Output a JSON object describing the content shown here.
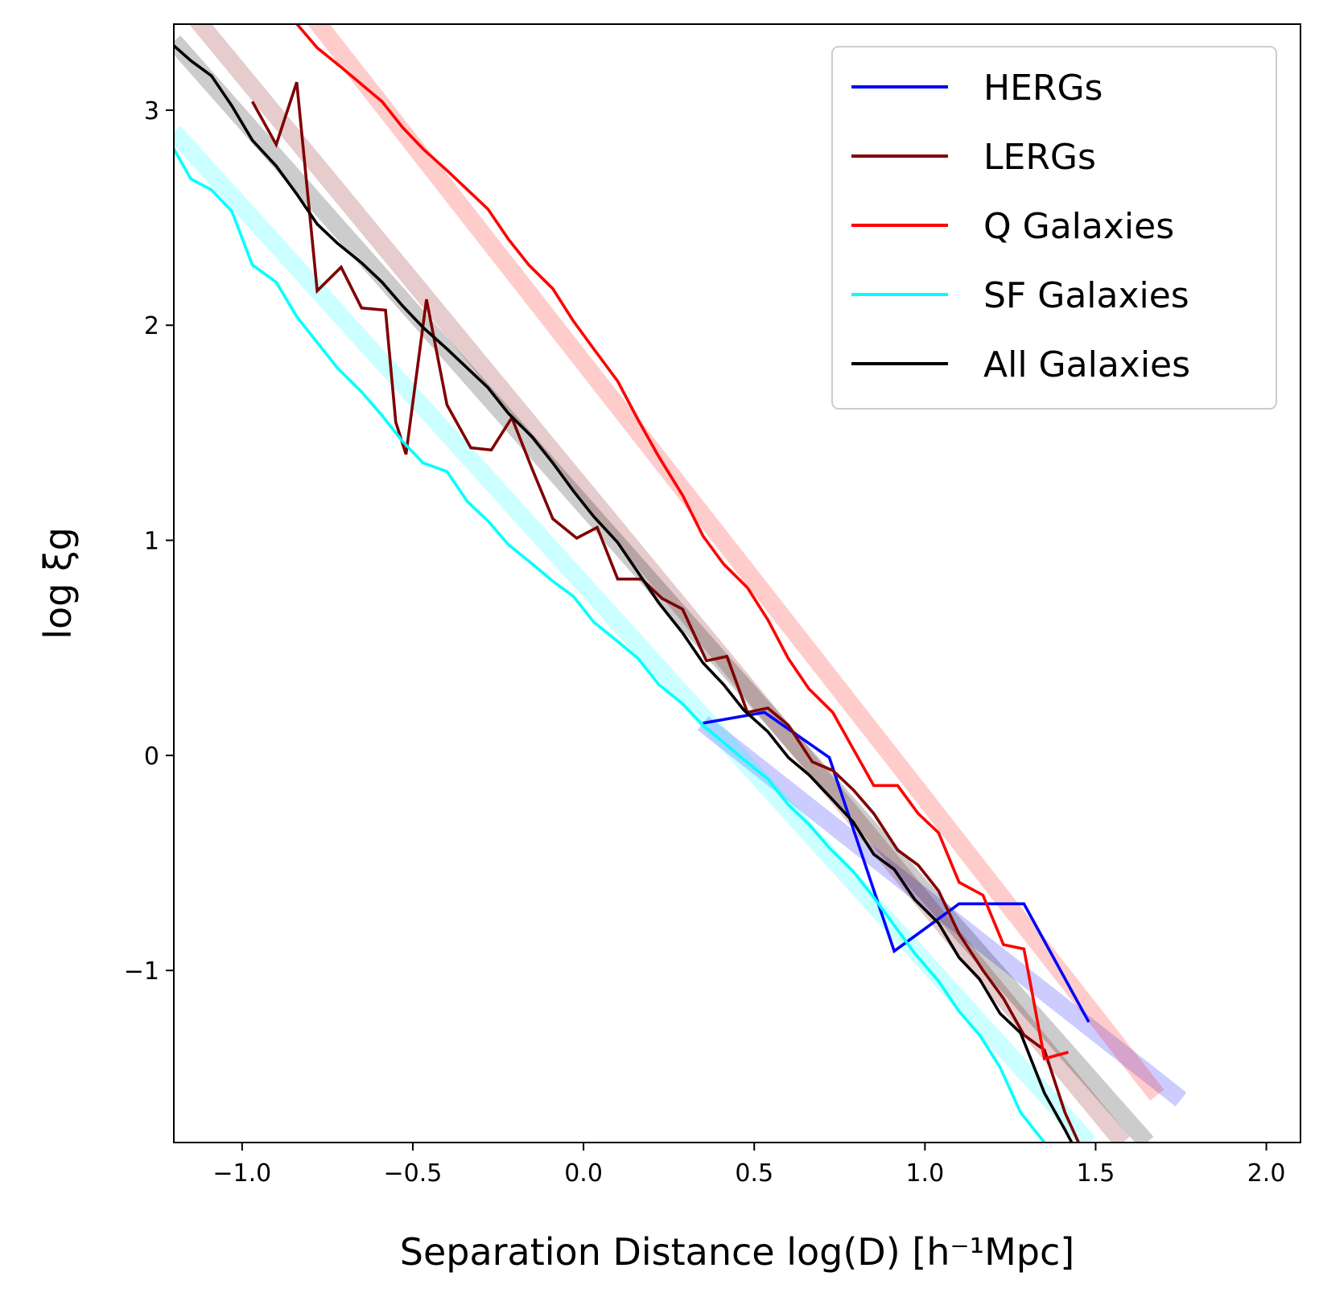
{
  "chart_data": {
    "type": "line",
    "xlabel": "Separation Distance log(D) [h⁻¹Mpc]",
    "ylabel": "log ξg",
    "xlim": [
      -1.2,
      2.1
    ],
    "ylim": [
      -1.8,
      3.4
    ],
    "xticks": [
      -1.0,
      -0.5,
      0.0,
      0.5,
      1.0,
      1.5,
      2.0
    ],
    "xtick_labels": [
      "−1.0",
      "−0.5",
      "0.0",
      "0.5",
      "1.0",
      "1.5",
      "2.0"
    ],
    "yticks": [
      -1,
      0,
      1,
      2,
      3
    ],
    "ytick_labels": [
      "−1",
      "0",
      "1",
      "2",
      "3"
    ],
    "legend_position": "top-right",
    "series": [
      {
        "name": "HERGs",
        "color": "#0000ff",
        "x": [
          0.35,
          0.53,
          0.72,
          0.91,
          1.1,
          1.29,
          1.48
        ],
        "y": [
          0.15,
          0.2,
          -0.01,
          -0.91,
          -0.69,
          -0.69,
          -1.24
        ]
      },
      {
        "name": "LERGs",
        "color": "#800000",
        "x": [
          -0.97,
          -0.9,
          -0.84,
          -0.78,
          -0.71,
          -0.65,
          -0.58,
          -0.55,
          -0.52,
          -0.46,
          -0.4,
          -0.33,
          -0.27,
          -0.21,
          -0.15,
          -0.09,
          -0.02,
          0.04,
          0.1,
          0.17,
          0.23,
          0.29,
          0.36,
          0.42,
          0.48,
          0.54,
          0.6,
          0.67,
          0.73,
          0.79,
          0.85,
          0.92,
          0.98,
          1.04,
          1.1,
          1.17,
          1.23,
          1.29,
          1.35,
          1.41,
          1.45
        ],
        "y": [
          3.04,
          2.84,
          3.13,
          2.16,
          2.27,
          2.08,
          2.07,
          1.55,
          1.4,
          2.12,
          1.63,
          1.43,
          1.42,
          1.57,
          1.33,
          1.1,
          1.01,
          1.06,
          0.82,
          0.82,
          0.73,
          0.68,
          0.44,
          0.46,
          0.2,
          0.22,
          0.14,
          -0.03,
          -0.07,
          -0.16,
          -0.27,
          -0.44,
          -0.51,
          -0.63,
          -0.83,
          -1.0,
          -1.13,
          -1.3,
          -1.37,
          -1.66,
          -1.8
        ]
      },
      {
        "name": "Q Galaxies",
        "color": "#ff0000",
        "x": [
          -0.85,
          -0.78,
          -0.71,
          -0.65,
          -0.59,
          -0.53,
          -0.47,
          -0.4,
          -0.34,
          -0.28,
          -0.22,
          -0.16,
          -0.09,
          -0.03,
          0.03,
          0.1,
          0.16,
          0.22,
          0.29,
          0.35,
          0.41,
          0.48,
          0.54,
          0.6,
          0.66,
          0.73,
          0.79,
          0.85,
          0.92,
          0.98,
          1.04,
          1.1,
          1.17,
          1.23,
          1.29,
          1.35,
          1.42
        ],
        "y": [
          3.42,
          3.29,
          3.2,
          3.12,
          3.04,
          2.92,
          2.82,
          2.72,
          2.63,
          2.54,
          2.4,
          2.28,
          2.17,
          2.02,
          1.89,
          1.74,
          1.56,
          1.39,
          1.21,
          1.02,
          0.89,
          0.78,
          0.63,
          0.45,
          0.31,
          0.2,
          0.03,
          -0.14,
          -0.14,
          -0.27,
          -0.36,
          -0.59,
          -0.65,
          -0.88,
          -0.9,
          -1.41,
          -1.38
        ]
      },
      {
        "name": "SF Galaxies",
        "color": "#00ffff",
        "x": [
          -1.2,
          -1.15,
          -1.09,
          -1.03,
          -0.97,
          -0.9,
          -0.84,
          -0.78,
          -0.72,
          -0.65,
          -0.59,
          -0.53,
          -0.47,
          -0.4,
          -0.34,
          -0.28,
          -0.22,
          -0.15,
          -0.09,
          -0.03,
          0.03,
          0.1,
          0.16,
          0.22,
          0.29,
          0.35,
          0.41,
          0.47,
          0.54,
          0.6,
          0.66,
          0.72,
          0.79,
          0.85,
          0.91,
          0.97,
          1.04,
          1.1,
          1.16,
          1.22,
          1.28,
          1.35
        ],
        "y": [
          2.82,
          2.68,
          2.63,
          2.53,
          2.28,
          2.2,
          2.04,
          1.92,
          1.8,
          1.69,
          1.58,
          1.46,
          1.36,
          1.32,
          1.18,
          1.09,
          0.98,
          0.89,
          0.81,
          0.74,
          0.62,
          0.53,
          0.45,
          0.33,
          0.24,
          0.14,
          0.06,
          -0.02,
          -0.11,
          -0.23,
          -0.32,
          -0.43,
          -0.54,
          -0.66,
          -0.79,
          -0.92,
          -1.05,
          -1.19,
          -1.3,
          -1.45,
          -1.66,
          -1.8
        ]
      },
      {
        "name": "All Galaxies",
        "color": "#000000",
        "x": [
          -1.2,
          -1.15,
          -1.09,
          -1.03,
          -0.97,
          -0.9,
          -0.84,
          -0.78,
          -0.72,
          -0.65,
          -0.59,
          -0.53,
          -0.47,
          -0.4,
          -0.34,
          -0.28,
          -0.22,
          -0.15,
          -0.09,
          -0.03,
          0.03,
          0.1,
          0.16,
          0.22,
          0.29,
          0.35,
          0.41,
          0.47,
          0.54,
          0.6,
          0.66,
          0.72,
          0.79,
          0.85,
          0.91,
          0.97,
          1.04,
          1.1,
          1.16,
          1.22,
          1.28,
          1.35,
          1.41,
          1.43
        ],
        "y": [
          3.3,
          3.23,
          3.16,
          3.02,
          2.86,
          2.74,
          2.61,
          2.47,
          2.38,
          2.29,
          2.2,
          2.09,
          1.99,
          1.89,
          1.8,
          1.71,
          1.59,
          1.48,
          1.36,
          1.23,
          1.11,
          0.99,
          0.85,
          0.71,
          0.57,
          0.43,
          0.33,
          0.21,
          0.11,
          -0.01,
          -0.09,
          -0.19,
          -0.31,
          -0.46,
          -0.53,
          -0.67,
          -0.78,
          -0.94,
          -1.04,
          -1.2,
          -1.29,
          -1.57,
          -1.74,
          -1.8
        ]
      }
    ],
    "fits": [
      {
        "name": "HERGs fit",
        "color": "#0000ff",
        "x": [
          0.35,
          1.75
        ],
        "y": [
          0.15,
          -1.6
        ]
      },
      {
        "name": "LERGs fit",
        "color": "#800000",
        "x": [
          -1.2,
          1.58
        ],
        "y": [
          3.55,
          -1.8
        ]
      },
      {
        "name": "Q Galaxies fit",
        "color": "#ff0000",
        "x": [
          -0.85,
          1.68
        ],
        "y": [
          3.55,
          -1.58
        ]
      },
      {
        "name": "SF Galaxies fit",
        "color": "#00ffff",
        "x": [
          -1.2,
          1.48
        ],
        "y": [
          2.9,
          -1.8
        ]
      },
      {
        "name": "All Galaxies fit",
        "color": "#000000",
        "x": [
          -1.2,
          1.65
        ],
        "y": [
          3.32,
          -1.8
        ]
      }
    ]
  }
}
